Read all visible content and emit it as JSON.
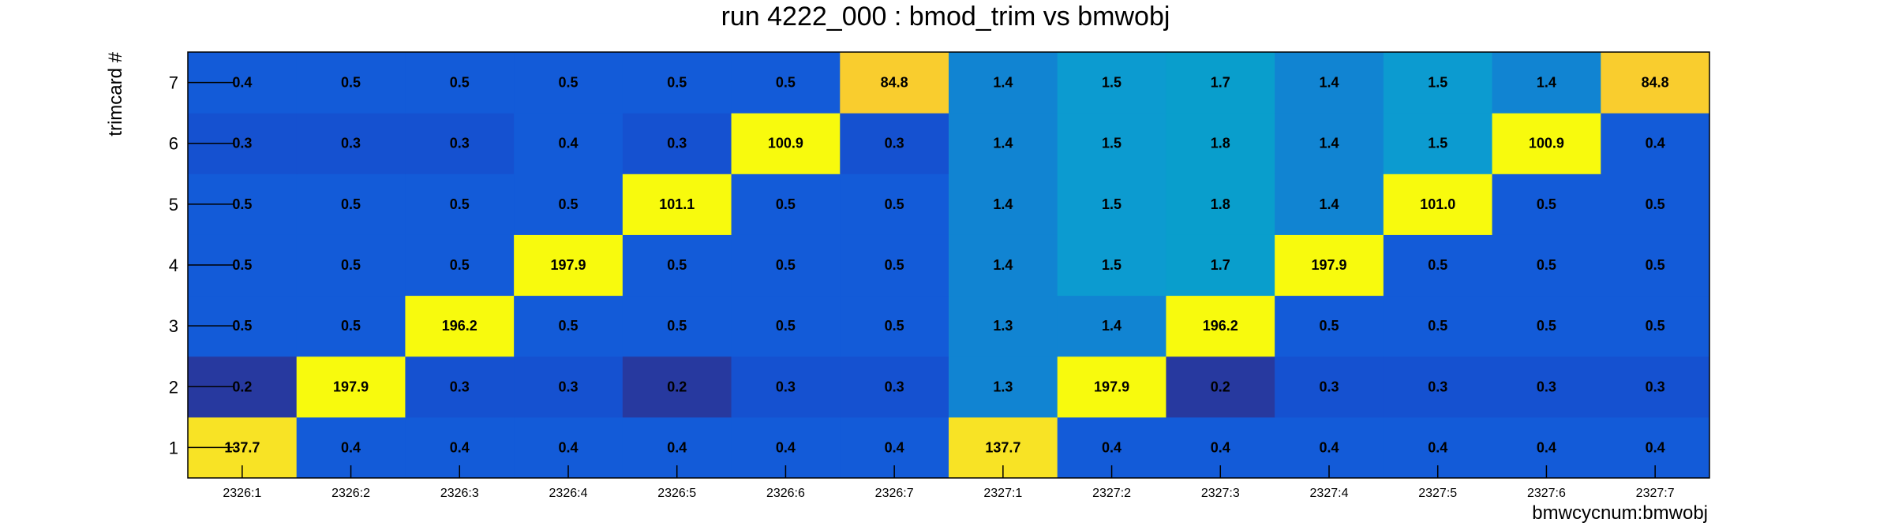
{
  "chart_data": {
    "type": "heatmap",
    "title": "run 4222_000 : bmod_trim vs bmwobj",
    "xlabel": "bmwcycnum:bmwobj",
    "ylabel": "trimcard #",
    "x_categories": [
      "2326:1",
      "2326:2",
      "2326:3",
      "2326:4",
      "2326:5",
      "2326:6",
      "2326:7",
      "2327:1",
      "2327:2",
      "2327:3",
      "2327:4",
      "2327:5",
      "2327:6",
      "2327:7"
    ],
    "y_categories": [
      "1",
      "2",
      "3",
      "4",
      "5",
      "6",
      "7"
    ],
    "values": [
      [
        137.7,
        0.4,
        0.4,
        0.4,
        0.4,
        0.4,
        0.4,
        137.7,
        0.4,
        0.4,
        0.4,
        0.4,
        0.4,
        0.4
      ],
      [
        0.2,
        197.9,
        0.3,
        0.3,
        0.2,
        0.3,
        0.3,
        1.3,
        197.9,
        0.2,
        0.3,
        0.3,
        0.3,
        0.3
      ],
      [
        0.5,
        0.5,
        196.2,
        0.5,
        0.5,
        0.5,
        0.5,
        1.3,
        1.4,
        196.2,
        0.5,
        0.5,
        0.5,
        0.5
      ],
      [
        0.5,
        0.5,
        0.5,
        197.9,
        0.5,
        0.5,
        0.5,
        1.4,
        1.5,
        1.7,
        197.9,
        0.5,
        0.5,
        0.5
      ],
      [
        0.5,
        0.5,
        0.5,
        0.5,
        101.1,
        0.5,
        0.5,
        1.4,
        1.5,
        1.8,
        1.4,
        101.0,
        0.5,
        0.5
      ],
      [
        0.3,
        0.3,
        0.3,
        0.4,
        0.3,
        100.9,
        0.3,
        1.4,
        1.5,
        1.8,
        1.4,
        1.5,
        100.9,
        0.4
      ],
      [
        0.4,
        0.5,
        0.5,
        0.5,
        0.5,
        0.5,
        84.8,
        1.4,
        1.5,
        1.7,
        1.4,
        1.5,
        1.4,
        84.8
      ]
    ],
    "cell_labels": [
      [
        "137.7",
        "0.4",
        "0.4",
        "0.4",
        "0.4",
        "0.4",
        "0.4",
        "137.7",
        "0.4",
        "0.4",
        "0.4",
        "0.4",
        "0.4",
        "0.4"
      ],
      [
        "0.2",
        "197.9",
        "0.3",
        "0.3",
        "0.2",
        "0.3",
        "0.3",
        "1.3",
        "197.9",
        "0.2",
        "0.3",
        "0.3",
        "0.3",
        "0.3"
      ],
      [
        "0.5",
        "0.5",
        "196.2",
        "0.5",
        "0.5",
        "0.5",
        "0.5",
        "1.3",
        "1.4",
        "196.2",
        "0.5",
        "0.5",
        "0.5",
        "0.5"
      ],
      [
        "0.5",
        "0.5",
        "0.5",
        "197.9",
        "0.5",
        "0.5",
        "0.5",
        "1.4",
        "1.5",
        "1.7",
        "197.9",
        "0.5",
        "0.5",
        "0.5"
      ],
      [
        "0.5",
        "0.5",
        "0.5",
        "0.5",
        "101.1",
        "0.5",
        "0.5",
        "1.4",
        "1.5",
        "1.8",
        "1.4",
        "101.0",
        "0.5",
        "0.5"
      ],
      [
        "0.3",
        "0.3",
        "0.3",
        "0.4",
        "0.3",
        "100.9",
        "0.3",
        "1.4",
        "1.5",
        "1.8",
        "1.4",
        "1.5",
        "100.9",
        "0.4"
      ],
      [
        "0.4",
        "0.5",
        "0.5",
        "0.5",
        "0.5",
        "0.5",
        "84.8",
        "1.4",
        "1.5",
        "1.7",
        "1.4",
        "1.5",
        "1.4",
        "84.8"
      ]
    ],
    "colors": {
      "lowest": "#27399f",
      "low": "#1551d0",
      "base": "#135bd8",
      "mid_low": "#1184d2",
      "mid": "#0c9bd0",
      "mid_high": "#099ecc",
      "orange": "#f9cd2e",
      "gold": "#f8e325",
      "yellow": "#f8fa0d"
    },
    "color_scale": "linear",
    "grid": false,
    "legend": "none"
  }
}
